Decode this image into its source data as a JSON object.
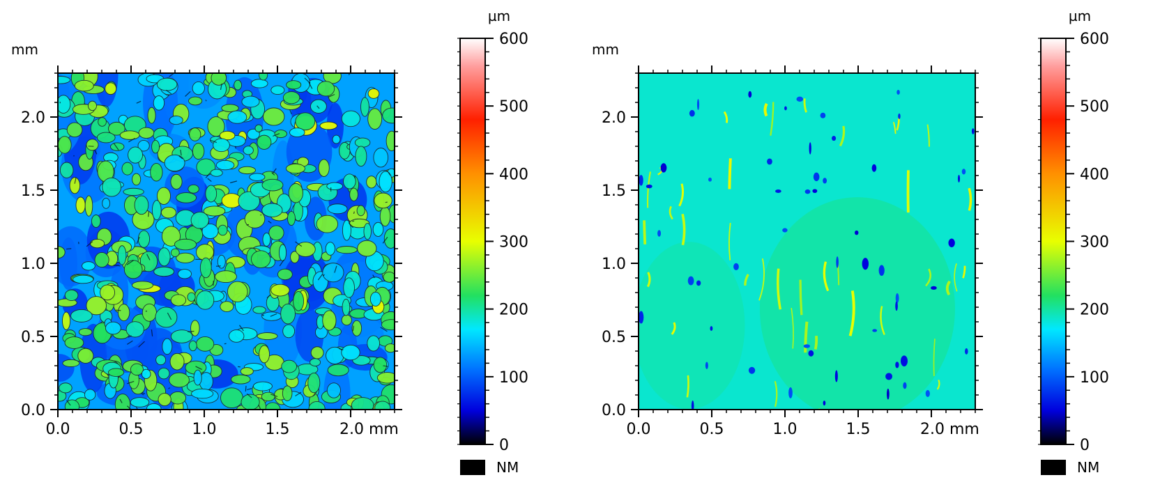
{
  "chart_data": [
    {
      "type": "heatmap",
      "title": "",
      "xlabel": "mm",
      "ylabel": "mm",
      "xlim": [
        0,
        2.3
      ],
      "ylim": [
        0,
        2.3
      ],
      "x_ticks": [
        0.0,
        0.5,
        1.0,
        1.5,
        2.0
      ],
      "y_ticks": [
        0.0,
        0.5,
        1.0,
        1.5,
        2.0
      ],
      "x_tick_labels": [
        "0.0",
        "0.5",
        "1.0",
        "1.5",
        "2.0 mm"
      ],
      "y_tick_labels": [
        "0.0",
        "0.5",
        "1.0",
        "1.5",
        "2.0"
      ],
      "y_unit_label": "mm",
      "surface": "rough",
      "description_values_um": {
        "typical_min": 80,
        "typical_max": 330,
        "mean": 175
      },
      "colorbar": {
        "unit": "µm",
        "range": [
          0,
          600
        ],
        "ticks": [
          0,
          100,
          200,
          300,
          400,
          500,
          600
        ],
        "tick_labels": [
          "0",
          "100",
          "200",
          "300",
          "400",
          "500",
          "600"
        ],
        "nm_label": "NM",
        "nm_color": "#000000"
      }
    },
    {
      "type": "heatmap",
      "title": "",
      "xlabel": "mm",
      "ylabel": "mm",
      "xlim": [
        0,
        2.3
      ],
      "ylim": [
        0,
        2.3
      ],
      "x_ticks": [
        0.0,
        0.5,
        1.0,
        1.5,
        2.0
      ],
      "y_ticks": [
        0.0,
        0.5,
        1.0,
        1.5,
        2.0
      ],
      "x_tick_labels": [
        "0.0",
        "0.5",
        "1.0",
        "1.5",
        "2.0 mm"
      ],
      "y_tick_labels": [
        "0.0",
        "0.5",
        "1.0",
        "1.5",
        "2.0"
      ],
      "y_unit_label": "mm",
      "surface": "smooth",
      "description_values_um": {
        "typical_min": 150,
        "typical_max": 300,
        "mean": 190
      },
      "colorbar": {
        "unit": "µm",
        "range": [
          0,
          600
        ],
        "ticks": [
          0,
          100,
          200,
          300,
          400,
          500,
          600
        ],
        "tick_labels": [
          "0",
          "100",
          "200",
          "300",
          "400",
          "500",
          "600"
        ],
        "nm_label": "NM",
        "nm_color": "#000000"
      }
    }
  ],
  "colormap": [
    {
      "v": 0,
      "c": "#000000"
    },
    {
      "v": 50,
      "c": "#0000dd"
    },
    {
      "v": 110,
      "c": "#0070ff"
    },
    {
      "v": 170,
      "c": "#00e8ff"
    },
    {
      "v": 220,
      "c": "#22e060"
    },
    {
      "v": 300,
      "c": "#e8ff00"
    },
    {
      "v": 400,
      "c": "#ff9000"
    },
    {
      "v": 480,
      "c": "#ff2000"
    },
    {
      "v": 560,
      "c": "#ffa0a0"
    },
    {
      "v": 600,
      "c": "#ffffff"
    }
  ]
}
